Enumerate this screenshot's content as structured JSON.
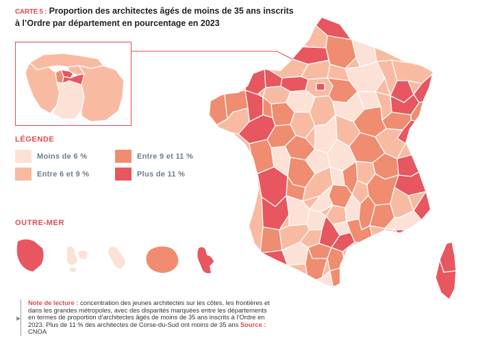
{
  "title": {
    "prefix": "CARTE 5 :",
    "line1": " Proportion des architectes âgés de moins de 35 ans inscrits",
    "line2": "à l’Ordre par département en pourcentage en 2023"
  },
  "legend": {
    "title": "LÉGENDE",
    "items": [
      {
        "label": "Moins de 6 %",
        "color": "#fde1d6"
      },
      {
        "label": "Entre 6 et 9 %",
        "color": "#f8bba2"
      },
      {
        "label": "Entre 9 et 11 %",
        "color": "#f08c6f"
      },
      {
        "label": "Plus de 11 %",
        "color": "#e8565f"
      }
    ]
  },
  "outremer": {
    "title": "OUTRE-MER"
  },
  "note": {
    "label": "Note de lecture :",
    "text": " concentration des jeunes architectes sur les côtes, les frontières et dans les grandes métropoles, avec des disparités marquées entre les départements en termes de proportion d’architectes âgés de moins de 35 ans inscrits à l’Ordre en 2023. Plus de 11 % des architectes de Corse-du-Sud ont moins de 35 ans ",
    "source_label": "Source :",
    "source": " CNOA"
  },
  "colors": {
    "accent": "#e2494f",
    "border": "#ffffff"
  }
}
